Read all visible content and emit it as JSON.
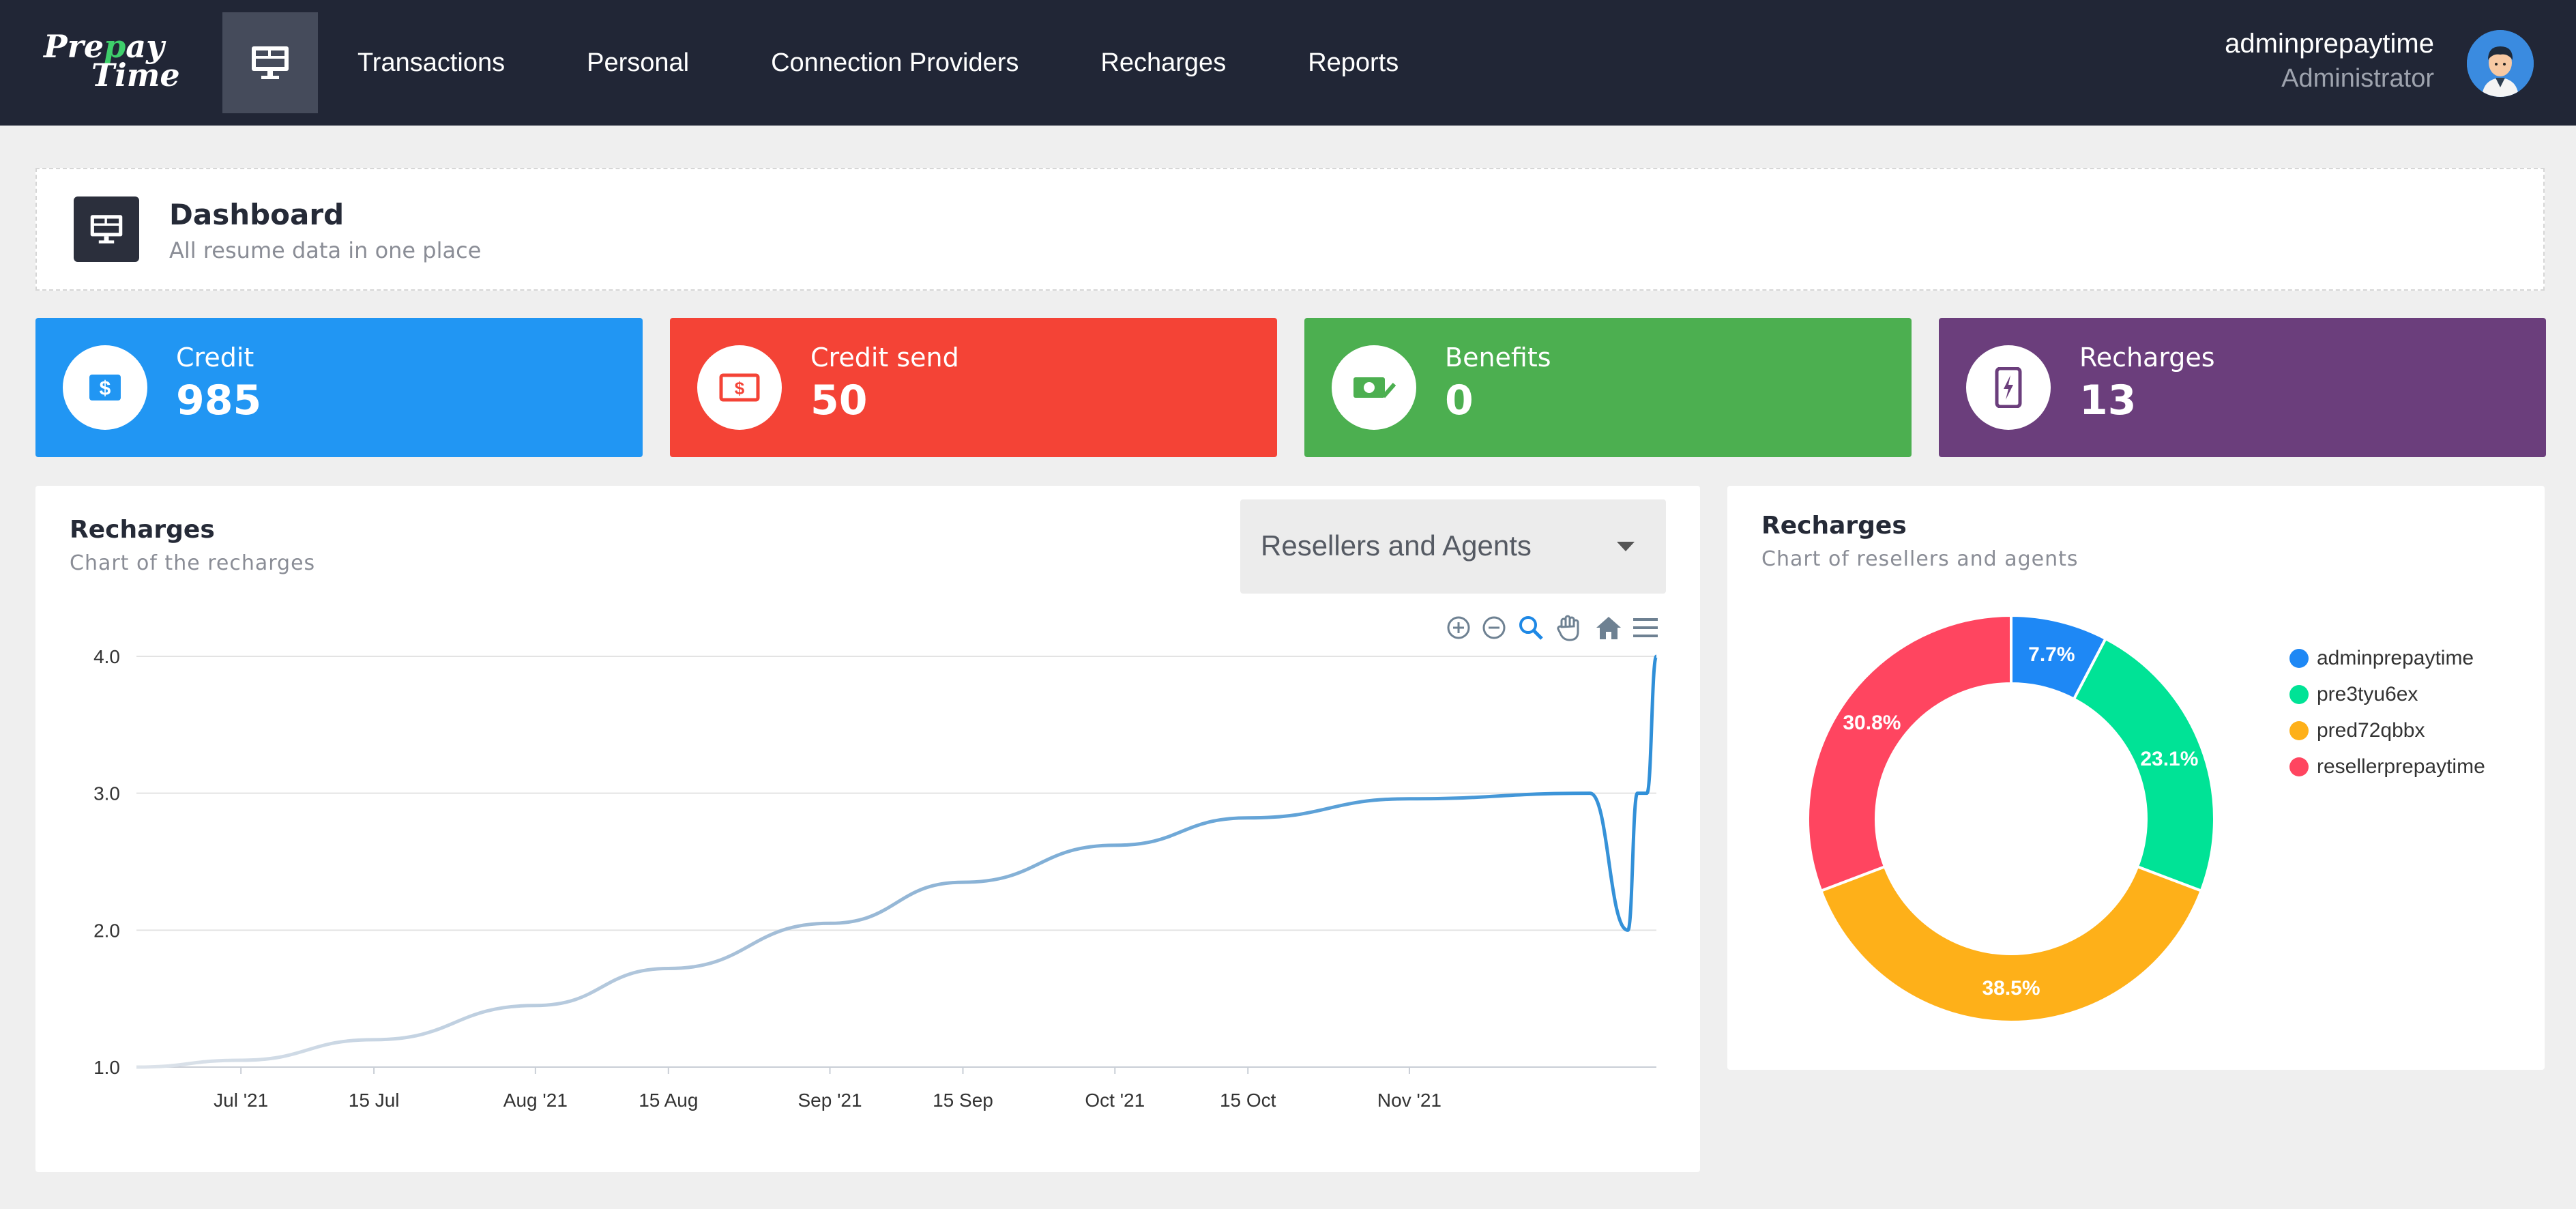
{
  "app": {
    "logo": {
      "line1_a": "Pre",
      "line1_b": "p",
      "line1_c": "ay",
      "line2": "Time"
    }
  },
  "nav": {
    "items": [
      "Transactions",
      "Personal",
      "Connection Providers",
      "Recharges",
      "Reports"
    ]
  },
  "user": {
    "name": "adminprepaytime",
    "role": "Administrator"
  },
  "header": {
    "title": "Dashboard",
    "subtitle": "All resume data in one place"
  },
  "stats": [
    {
      "label": "Credit",
      "value": "985",
      "color": "#2196f3",
      "icon": "dollar-icon"
    },
    {
      "label": "Credit send",
      "value": "50",
      "color": "#f44336",
      "icon": "money-bill-icon"
    },
    {
      "label": "Benefits",
      "value": "0",
      "color": "#4caf50",
      "icon": "money-check-icon"
    },
    {
      "label": "Recharges",
      "value": "13",
      "color": "#6b3e7c",
      "icon": "phone-bolt-icon"
    }
  ],
  "line_panel": {
    "title": "Recharges",
    "subtitle": "Chart of the recharges",
    "filter": {
      "selected": "Resellers and Agents"
    }
  },
  "donut_panel": {
    "title": "Recharges",
    "subtitle": "Chart of resellers and agents"
  },
  "chart_data": [
    {
      "type": "line",
      "title": "",
      "xlabel": "",
      "ylabel": "",
      "ylim": [
        1.0,
        4.0
      ],
      "yticks": [
        "1.0",
        "2.0",
        "3.0",
        "4.0"
      ],
      "xticks": [
        "Jul '21",
        "15 Jul",
        "Aug '21",
        "15 Aug",
        "Sep '21",
        "15 Sep",
        "Oct '21",
        "15 Oct",
        "Nov '21"
      ],
      "grid": true,
      "color": "#2f8fd8",
      "series": [
        {
          "x": [
            "2021-06-20",
            "2021-07-01",
            "2021-07-15",
            "2021-08-01",
            "2021-08-15",
            "2021-09-01",
            "2021-09-15",
            "2021-10-01",
            "2021-10-15",
            "2021-11-01",
            "2021-11-20",
            "2021-11-24",
            "2021-11-25",
            "2021-11-26",
            "2021-11-27"
          ],
          "y": [
            1.0,
            1.05,
            1.2,
            1.45,
            1.72,
            2.05,
            2.35,
            2.62,
            2.82,
            2.96,
            3.0,
            2.0,
            3.0,
            3.0,
            4.0
          ]
        }
      ]
    },
    {
      "type": "pie",
      "donut": true,
      "legend": "right",
      "categories": [
        "adminprepaytime",
        "pre3tyu6ex",
        "pred72qbbx",
        "resellerprepaytime"
      ],
      "values": [
        7.7,
        23.1,
        38.5,
        30.8
      ],
      "labels": [
        "7.7%",
        "23.1%",
        "38.5%",
        "30.8%"
      ],
      "colors": [
        "#1e88f5",
        "#00e396",
        "#feb019",
        "#ff4560"
      ]
    }
  ]
}
